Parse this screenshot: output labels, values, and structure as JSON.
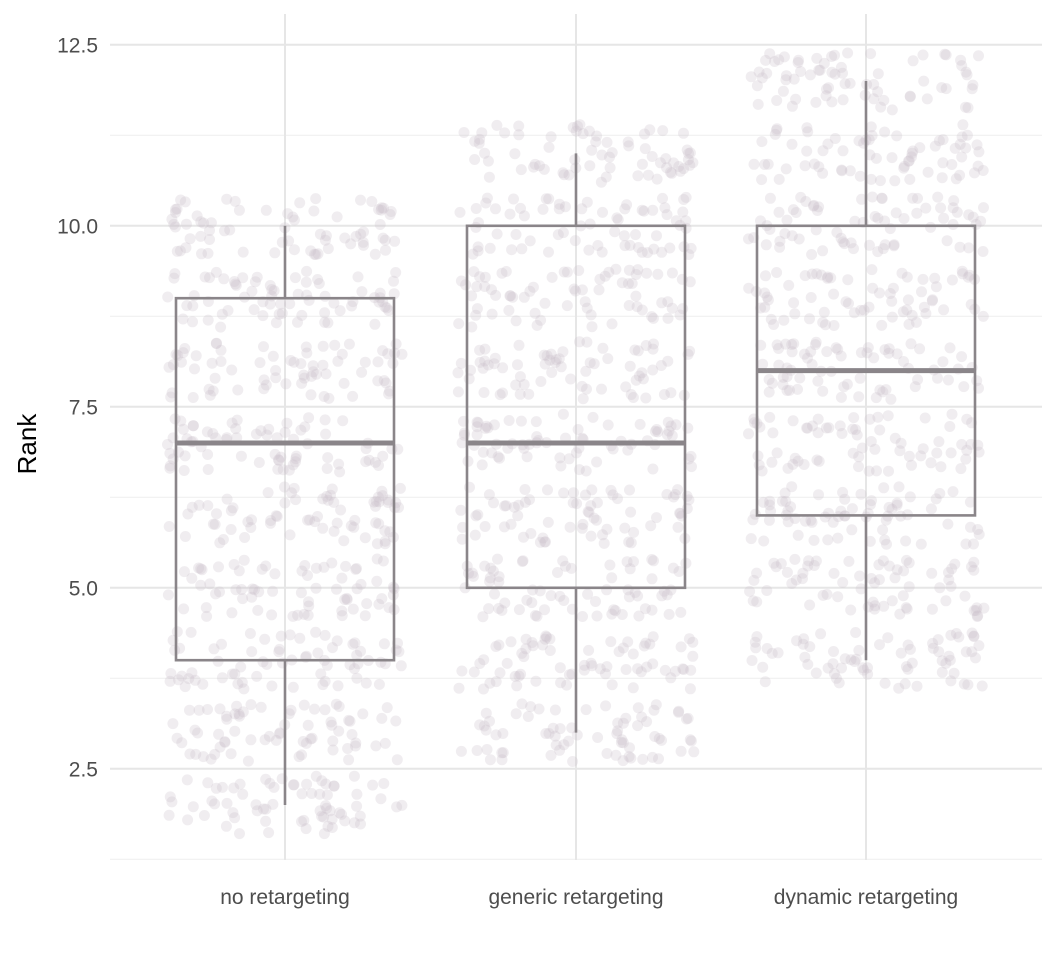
{
  "chart_data": {
    "type": "boxplot",
    "xlabel": "",
    "ylabel": "Rank",
    "ylim": [
      1.1,
      12.9
    ],
    "y_ticks": [
      2.5,
      5.0,
      7.5,
      10.0,
      12.5
    ],
    "y_tick_labels": [
      "2.5",
      "5.0",
      "7.5",
      "10.0",
      "12.5"
    ],
    "grid": true,
    "categories": [
      "no retargeting",
      "generic retargeting",
      "dynamic retargeting"
    ],
    "boxes": [
      {
        "category": "no retargeting",
        "whisker_low": 2,
        "q1": 4,
        "median": 7,
        "q3": 9,
        "whisker_high": 10
      },
      {
        "category": "generic retargeting",
        "whisker_low": 3,
        "q1": 5,
        "median": 7,
        "q3": 10,
        "whisker_high": 11
      },
      {
        "category": "dynamic retargeting",
        "whisker_low": 4,
        "q1": 6,
        "median": 8,
        "q3": 10,
        "whisker_high": 12
      }
    ],
    "jitter_points": {
      "description_of_range": "jittered integer ranks per group",
      "groups": [
        {
          "category": "no retargeting",
          "values": [
            2,
            3,
            4,
            5,
            6,
            7,
            8,
            9,
            10
          ],
          "counts": [
            70,
            70,
            70,
            70,
            70,
            70,
            70,
            70,
            70
          ]
        },
        {
          "category": "generic retargeting",
          "values": [
            3,
            4,
            5,
            6,
            7,
            8,
            9,
            10,
            11
          ],
          "counts": [
            70,
            70,
            70,
            70,
            70,
            70,
            70,
            70,
            70
          ]
        },
        {
          "category": "dynamic retargeting",
          "values": [
            4,
            5,
            6,
            7,
            8,
            9,
            10,
            11,
            12
          ],
          "counts": [
            70,
            70,
            70,
            70,
            70,
            70,
            70,
            70,
            70
          ]
        }
      ]
    },
    "colors": {
      "box_stroke": "#8a8589",
      "point_fill": "#c9bfca",
      "grid_major": "#e6e6e6",
      "grid_minor": "#f0f0f0"
    }
  }
}
